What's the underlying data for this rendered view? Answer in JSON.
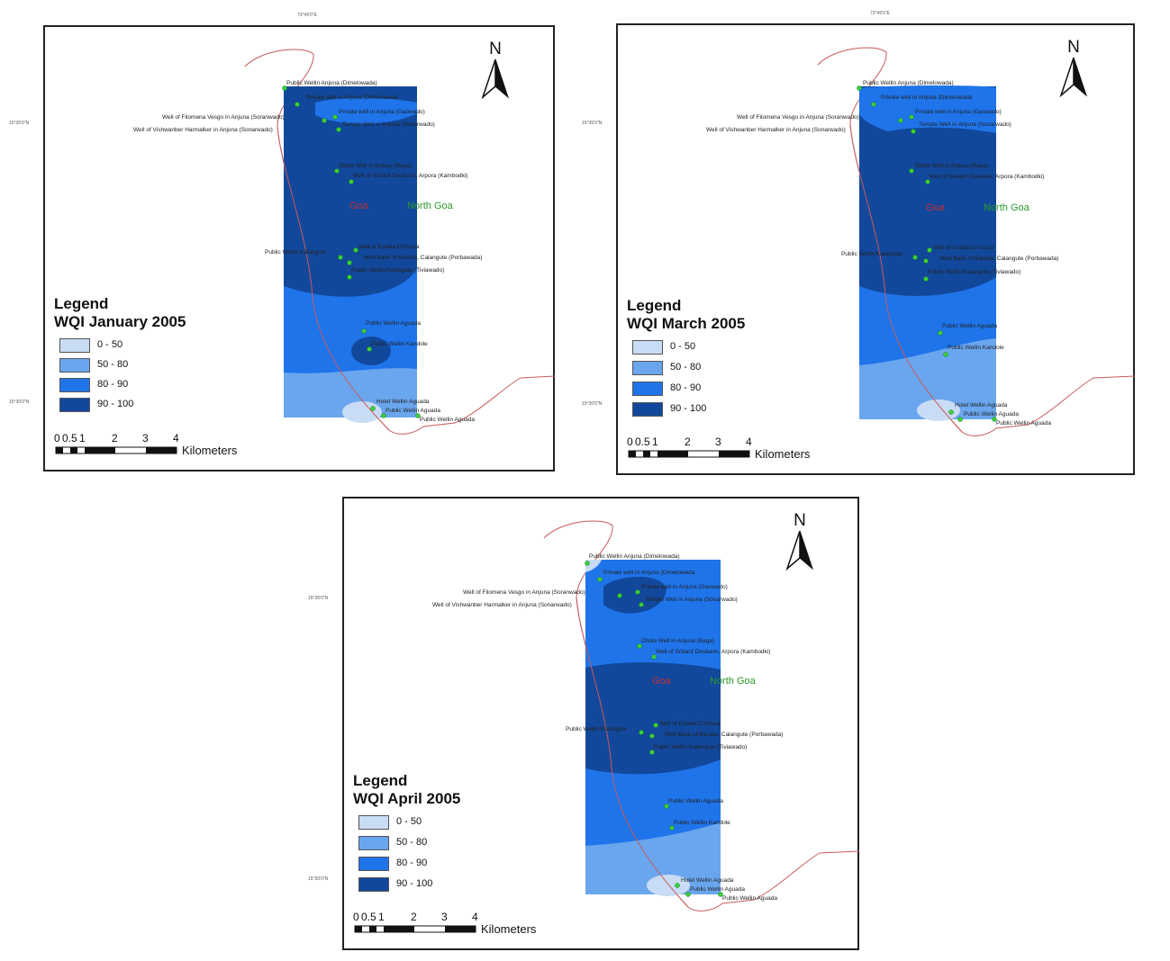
{
  "panels": [
    {
      "legend_heading": "Legend",
      "legend_title": "WQI January 2005"
    },
    {
      "legend_heading": "Legend",
      "legend_title": "WQI March 2005"
    },
    {
      "legend_heading": "Legend",
      "legend_title": "WQI April 2005"
    }
  ],
  "legend_classes": [
    {
      "label": "0 - 50",
      "color": "#c9dcf5"
    },
    {
      "label": "50 - 80",
      "color": "#6aa6ee"
    },
    {
      "label": "80 - 90",
      "color": "#1f74ea"
    },
    {
      "label": "90 - 100",
      "color": "#12489b"
    }
  ],
  "north_label": "N",
  "scale": {
    "ticks": [
      "0",
      "0.5",
      "1",
      "2",
      "3",
      "4"
    ],
    "units": "Kilometers"
  },
  "place_labels": {
    "goa": "Goa",
    "north_goa": "North Goa"
  },
  "stations": [
    "Public Wellin Anjuna (Dimelowada)",
    "Private well in Anjuna (Dimelowada",
    "Private well in Anjuna (Gaowado)",
    "Well of Filomena Vesgo in Anjuna (Soranwado)",
    "Temple Well in Anjuna (Sonarwado)",
    "Well of Vishwanber Harmalker in Anjuna (Sonarwado)",
    "Dhole Well in Anjuna (Baga)",
    "Well of Srikant Deukarin, Arpora (Kambodki)",
    "Well of Eulalia D'Souza",
    "Public Wellin Kalangute",
    "Well Bank of Baroda, Calangute (Porbawada)",
    "Public Wellin Kalangute (Tiviawado)",
    "Public Wellin Aguada",
    "Public Wellin Kandole",
    "Hotel Wellin Aguada",
    "Public Wellin Aguada",
    "Public Wellin Aguada"
  ],
  "coords": {
    "top": "73°45'0\"E",
    "left_upper": "15°35'0\"N",
    "left_lower": "15°30'0\"N"
  },
  "colors": {
    "station": "#3bd13b",
    "coast": "#c85a5a",
    "place_goa": "#c03030",
    "place_north_goa": "#2a9a2a"
  }
}
